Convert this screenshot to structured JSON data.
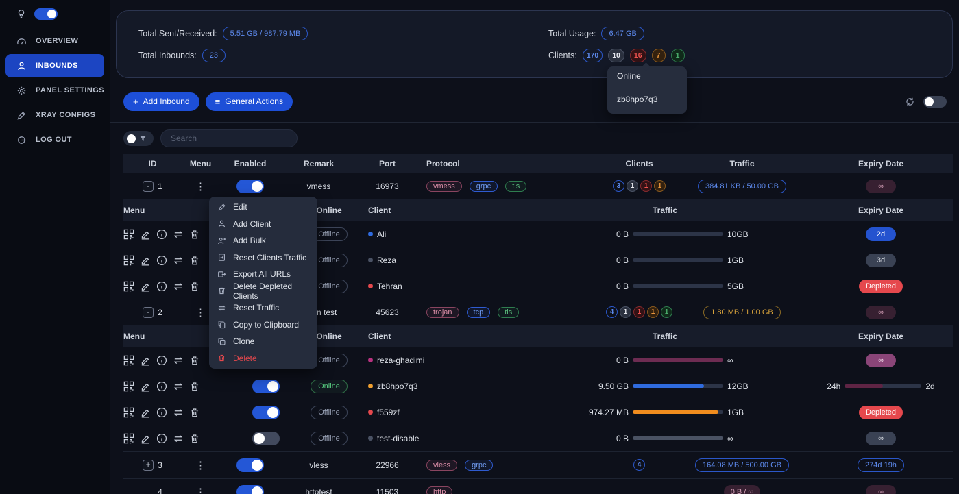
{
  "colors": {
    "accent_blue": "#1d4fd7",
    "active_nav_blue": "#1c45c2",
    "online_green": "#55c77d",
    "danger_red": "#e5484d",
    "warning_amber": "#d9a33c",
    "info_blue": "#5e8bef",
    "magenta": "#8a4578"
  },
  "sidebar": {
    "items": [
      {
        "label": "OVERVIEW",
        "icon": "gauge-icon"
      },
      {
        "label": "INBOUNDS",
        "icon": "user-icon"
      },
      {
        "label": "PANEL SETTINGS",
        "icon": "gear-icon"
      },
      {
        "label": "XRAY CONFIGS",
        "icon": "pen-icon"
      },
      {
        "label": "LOG OUT",
        "icon": "logout-icon"
      }
    ]
  },
  "stats": {
    "sent_received_label": "Total Sent/Received:",
    "sent_received_value": "5.51 GB / 987.79 MB",
    "inbounds_label": "Total Inbounds:",
    "inbounds_value": "23",
    "usage_label": "Total Usage:",
    "usage_value": "6.47 GB",
    "clients_label": "Clients:",
    "client_counts": [
      {
        "value": "170",
        "variant": "blue"
      },
      {
        "value": "10",
        "variant": "gray"
      },
      {
        "value": "16",
        "variant": "red"
      },
      {
        "value": "7",
        "variant": "orange"
      },
      {
        "value": "1",
        "variant": "green"
      }
    ]
  },
  "online_tooltip": {
    "title": "Online",
    "client": "zb8hpo7q3"
  },
  "toolbar": {
    "add_inbound_label": "Add Inbound",
    "general_actions_label": "General Actions"
  },
  "search": {
    "placeholder": "Search"
  },
  "table": {
    "headers": {
      "id": "ID",
      "menu": "Menu",
      "enabled": "Enabled",
      "remark": "Remark",
      "port": "Port",
      "protocol": "Protocol",
      "clients": "Clients",
      "traffic": "Traffic",
      "expiry": "Expiry Date"
    },
    "sub_headers": {
      "menu": "Menu",
      "online": "Online",
      "client": "Client",
      "traffic": "Traffic",
      "expiry": "Expiry Date"
    }
  },
  "context_menu": {
    "items": [
      {
        "label": "Edit"
      },
      {
        "label": "Add Client"
      },
      {
        "label": "Add Bulk"
      },
      {
        "label": "Reset Clients Traffic"
      },
      {
        "label": "Export All URLs"
      },
      {
        "label": "Delete Depleted Clients"
      },
      {
        "label": "Reset Traffic"
      },
      {
        "label": "Copy to Clipboard"
      },
      {
        "label": "Clone"
      },
      {
        "label": "Delete",
        "danger": true
      }
    ]
  },
  "inbounds": [
    {
      "id": "1",
      "expand": "-",
      "remark": "vmess",
      "port": "16973",
      "protocols": [
        {
          "label": "vmess"
        },
        {
          "label": "grpc"
        },
        {
          "label": "tls"
        }
      ],
      "client_counts": [
        {
          "value": "3"
        },
        {
          "value": "1"
        },
        {
          "value": "1"
        },
        {
          "value": "1"
        }
      ],
      "traffic": "384.81 KB / 50.00 GB",
      "expiry": "∞",
      "clients": [
        {
          "online_label": "Offline",
          "name": "Ali",
          "used": "0 B",
          "total": "10GB",
          "used_pct": 0,
          "expiry": "2d"
        },
        {
          "online_label": "Offline",
          "name": "Reza",
          "used": "0 B",
          "total": "1GB",
          "used_pct": 0,
          "expiry": "3d"
        },
        {
          "online_label": "Offline",
          "name": "Tehran",
          "used": "0 B",
          "total": "5GB",
          "used_pct": 0,
          "expiry": "Depleted"
        }
      ]
    },
    {
      "id": "2",
      "expand": "-",
      "remark": "trojan test",
      "port": "45623",
      "protocols": [
        {
          "label": "trojan"
        },
        {
          "label": "tcp"
        },
        {
          "label": "tls"
        }
      ],
      "client_counts": [
        {
          "value": "4"
        },
        {
          "value": "1"
        },
        {
          "value": "1"
        },
        {
          "value": "1"
        },
        {
          "value": "1"
        }
      ],
      "traffic": "1.80 MB / 1.00 GB",
      "expiry": "∞",
      "clients": [
        {
          "online_label": "Offline",
          "name": "reza-ghadimi",
          "used": "0 B",
          "total": "∞",
          "used_pct": 100,
          "expiry": "∞"
        },
        {
          "online_label": "Online",
          "name": "zb8hpo7q3",
          "used": "9.50 GB",
          "total": "12GB",
          "used_pct": 79,
          "expiry_used": "24h",
          "expiry_total": "2d",
          "expiry_pct": 50
        },
        {
          "online_label": "Offline",
          "name": "f559zf",
          "used": "974.27 MB",
          "total": "1GB",
          "used_pct": 95,
          "expiry": "Depleted"
        },
        {
          "online_label": "Offline",
          "name": "test-disable",
          "used": "0 B",
          "total": "∞",
          "used_pct": 100,
          "expiry": "∞"
        }
      ]
    },
    {
      "id": "3",
      "expand": "+",
      "remark": "vless",
      "port": "22966",
      "protocols": [
        {
          "label": "vless"
        },
        {
          "label": "grpc"
        }
      ],
      "client_counts": [
        {
          "value": "4"
        }
      ],
      "traffic": "164.08 MB / 500.00 GB",
      "expiry": "274d 19h"
    },
    {
      "id": "4",
      "remark": "httptest",
      "port": "11503",
      "protocols": [
        {
          "label": "http"
        }
      ],
      "traffic": "0 B / ∞",
      "expiry": "∞"
    }
  ]
}
